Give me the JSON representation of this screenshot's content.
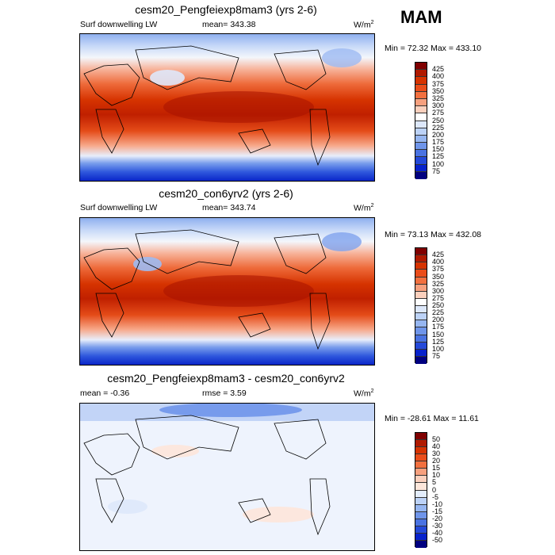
{
  "season": "MAM",
  "panels": [
    {
      "title": "cesm20_Pengfeiexp8mam3 (yrs 2-6)",
      "left_label": "Surf downwelling LW",
      "center_label": "mean= 343.38",
      "units": "W/m",
      "units_sup": "2",
      "minmax": "Min =  72.32 Max = 433.10",
      "colorbar_labels": [
        "425",
        "400",
        "375",
        "350",
        "325",
        "300",
        "275",
        "250",
        "225",
        "200",
        "175",
        "150",
        "125",
        "100",
        "75"
      ]
    },
    {
      "title": "cesm20_con6yrv2 (yrs 2-6)",
      "left_label": "Surf downwelling LW",
      "center_label": "mean= 343.74",
      "units": "W/m",
      "units_sup": "2",
      "minmax": "Min =  73.13 Max = 432.08",
      "colorbar_labels": [
        "425",
        "400",
        "375",
        "350",
        "325",
        "300",
        "275",
        "250",
        "225",
        "200",
        "175",
        "150",
        "125",
        "100",
        "75"
      ]
    },
    {
      "title": "cesm20_Pengfeiexp8mam3 - cesm20_con6yrv2",
      "left_label": "mean =  -0.36",
      "center_label": "rmse =   3.59",
      "units": "W/m",
      "units_sup": "2",
      "minmax": "Min = -28.61 Max =  11.61",
      "colorbar_labels": [
        "50",
        "40",
        "30",
        "20",
        "15",
        "10",
        "5",
        "0",
        "-5",
        "-10",
        "-15",
        "-20",
        "-30",
        "-40",
        "-50"
      ]
    }
  ],
  "colors": {
    "abs_scale": [
      "#800000",
      "#b01a00",
      "#d63300",
      "#ea4d1a",
      "#f2703f",
      "#f7a07e",
      "#fbd0bd",
      "#ffffff",
      "#dde8fb",
      "#bcd2f7",
      "#96b6f1",
      "#6f95ea",
      "#4a73e2",
      "#2449d9",
      "#0722cc",
      "#000080"
    ],
    "diff_scale": [
      "#800000",
      "#b01a00",
      "#d63300",
      "#ea4d1a",
      "#f2703f",
      "#f7a07e",
      "#fbd0bd",
      "#fde6da",
      "#e3edfc",
      "#bcd2f7",
      "#96b6f1",
      "#6f95ea",
      "#4a73e2",
      "#2449d9",
      "#0722cc",
      "#000080"
    ]
  }
}
